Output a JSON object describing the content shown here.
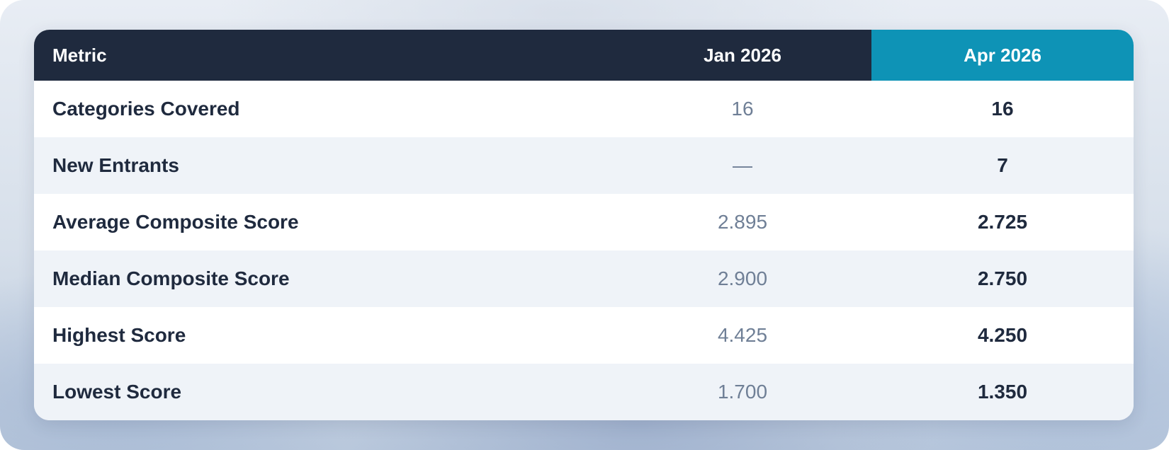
{
  "table": {
    "headers": {
      "metric": "Metric",
      "jan": "Jan 2026",
      "apr": "Apr 2026"
    },
    "rows": [
      {
        "metric": "Categories Covered",
        "jan": "16",
        "apr": "16"
      },
      {
        "metric": "New Entrants",
        "jan": "—",
        "apr": "7"
      },
      {
        "metric": "Average Composite Score",
        "jan": "2.895",
        "apr": "2.725"
      },
      {
        "metric": "Median Composite Score",
        "jan": "2.900",
        "apr": "2.750"
      },
      {
        "metric": "Highest Score",
        "jan": "4.425",
        "apr": "4.250"
      },
      {
        "metric": "Lowest Score",
        "jan": "1.700",
        "apr": "1.350"
      }
    ]
  },
  "colors": {
    "header_dark": "#1f2a3e",
    "header_accent": "#0e93b6",
    "row_alt": "#eff3f8",
    "muted_text": "#6f7f96"
  }
}
